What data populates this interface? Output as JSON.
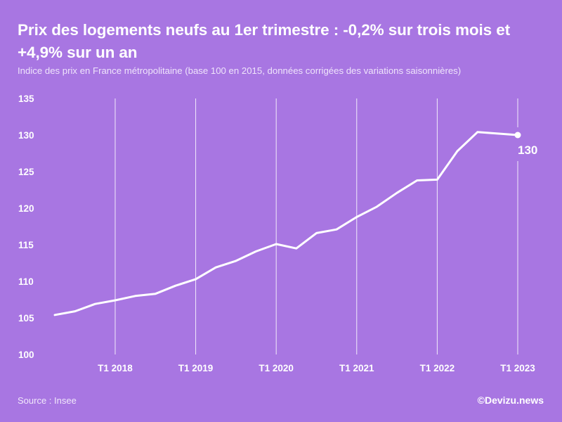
{
  "header": {
    "title": "Prix des logements neufs au 1er trimestre : -0,2% sur trois mois et +4,9% sur un an",
    "subtitle": "Indice des prix en France métropolitaine (base 100 en 2015, données corrigées des variations saisonnières)"
  },
  "footer": {
    "source": "Source : Insee",
    "credit": "©Devizu.news"
  },
  "colors": {
    "background": "#a876e2",
    "line": "#ffffff",
    "grid": "#ffffff"
  },
  "chart_data": {
    "type": "line",
    "title": "Prix des logements neufs au 1er trimestre : -0,2% sur trois mois et +4,9% sur un an",
    "subtitle": "Indice des prix en France métropolitaine (base 100 en 2015, données corrigées des variations saisonnières)",
    "xlabel": "",
    "ylabel": "",
    "x_ticks": [
      "T1 2018",
      "T1 2019",
      "T1 2020",
      "T1 2021",
      "T1 2022",
      "T1 2023"
    ],
    "y_ticks": [
      100,
      105,
      110,
      115,
      120,
      125,
      130,
      135
    ],
    "ylim": [
      100,
      135
    ],
    "xlim": [
      "T2 2017",
      "T1 2023"
    ],
    "grid": "vertical lines at each T1",
    "legend": "none",
    "series": [
      {
        "x": [
          "T2 2017",
          "T3 2017",
          "T4 2017",
          "T1 2018",
          "T2 2018",
          "T3 2018",
          "T4 2018",
          "T1 2019",
          "T2 2019",
          "T3 2019",
          "T4 2019",
          "T1 2020",
          "T2 2020",
          "T3 2020",
          "T4 2020",
          "T1 2021",
          "T2 2021",
          "T3 2021",
          "T4 2021",
          "T1 2022",
          "T2 2022",
          "T3 2022",
          "T4 2022",
          "T1 2023"
        ],
        "values": [
          105.4,
          105.9,
          106.9,
          107.4,
          108.0,
          108.3,
          109.4,
          110.3,
          111.9,
          112.8,
          114.1,
          115.1,
          114.5,
          116.6,
          117.1,
          118.8,
          120.2,
          122.1,
          123.8,
          123.9,
          127.8,
          130.4,
          130.2,
          130.0
        ]
      }
    ],
    "annotations": [
      {
        "x": "T1 2023",
        "text": "130"
      }
    ]
  }
}
